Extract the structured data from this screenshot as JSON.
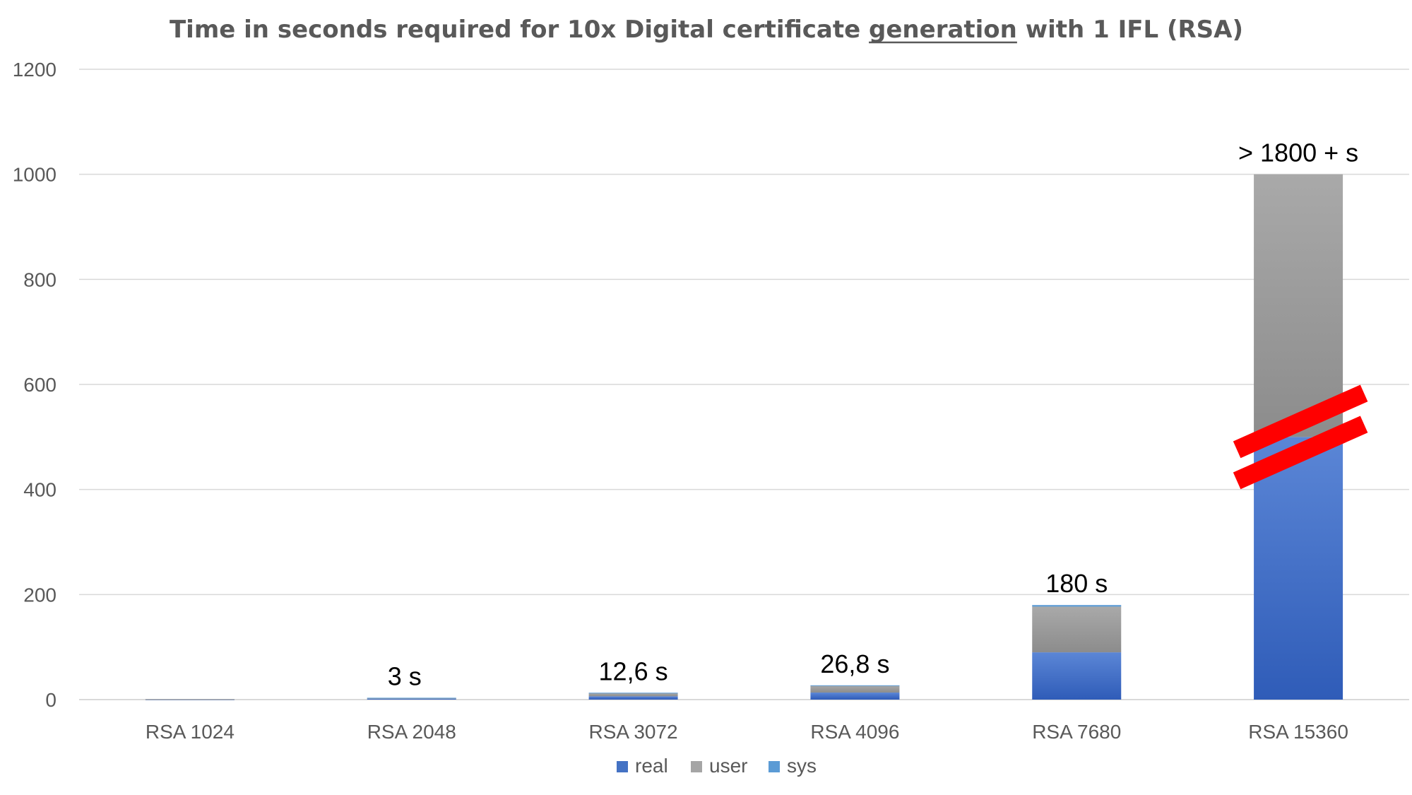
{
  "chart_data": {
    "type": "bar",
    "stacked": true,
    "title": {
      "prefix": "Time in seconds required for 10x Digital certificate ",
      "emphasis": "generation",
      "suffix": " with 1 IFL (RSA)"
    },
    "xlabel": "",
    "ylabel": "",
    "ylim": [
      0,
      1200
    ],
    "yticks": [
      "0",
      "200",
      "400",
      "600",
      "800",
      "1000",
      "1200"
    ],
    "grid": true,
    "legend_position": "bottom",
    "categories": [
      "RSA 1024",
      "RSA 2048",
      "RSA 3072",
      "RSA 4096",
      "RSA 7680",
      "RSA 15360"
    ],
    "series": [
      {
        "name": "real",
        "color": "#4472C4",
        "values": [
          0.5,
          1.5,
          6.3,
          13.4,
          90,
          500
        ]
      },
      {
        "name": "user",
        "color": "#A5A5A5",
        "values": [
          0.5,
          1.5,
          6.2,
          13.2,
          87,
          500
        ]
      },
      {
        "name": "sys",
        "color": "#5B9BD5",
        "values": [
          0,
          0.5,
          0.6,
          0.6,
          3,
          0
        ]
      }
    ],
    "data_labels": [
      "",
      "3 s",
      "12,6 s",
      "26,8 s",
      "180 s",
      "> 1800 + s"
    ],
    "annotations": [
      {
        "type": "axis-break",
        "category": "RSA 15360",
        "value": 500,
        "color": "#FF0000"
      }
    ]
  }
}
